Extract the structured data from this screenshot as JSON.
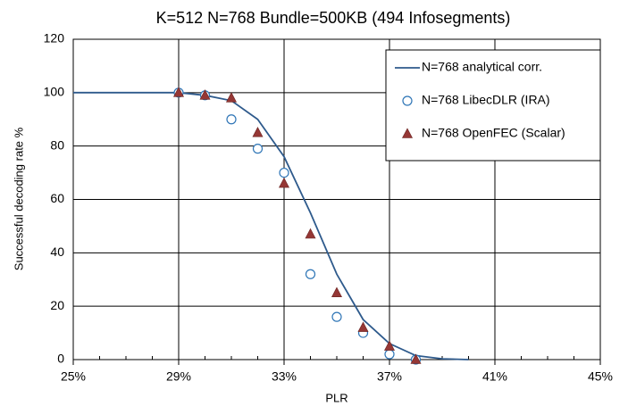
{
  "chart_data": {
    "type": "line",
    "title": "K=512 N=768 Bundle=500KB (494 Infosegments)",
    "xlabel": "PLR",
    "ylabel": "Successful decoding rate %",
    "xlim": [
      25,
      45
    ],
    "xticks": [
      {
        "value": 25,
        "label": "25%"
      },
      {
        "value": 29,
        "label": "29%"
      },
      {
        "value": 33,
        "label": "33%"
      },
      {
        "value": 37,
        "label": "37%"
      },
      {
        "value": 41,
        "label": "41%"
      },
      {
        "value": 45,
        "label": "45%"
      }
    ],
    "xminorticks": [
      26,
      27,
      28,
      30,
      31,
      32,
      34,
      35,
      36,
      38,
      39,
      40,
      42,
      43,
      44
    ],
    "ylim": [
      0,
      120
    ],
    "yticks": [
      0,
      20,
      40,
      60,
      80,
      100,
      120
    ],
    "grid": true,
    "legend": "upper right",
    "series": [
      {
        "name": "N=768 analytical corr.",
        "marker": "line",
        "color": "#2e5a8c",
        "x": [
          25,
          26,
          27,
          28,
          29,
          30,
          31,
          32,
          33,
          34,
          35,
          36,
          37,
          38,
          39,
          40
        ],
        "values": [
          100,
          100,
          100,
          100,
          100,
          99,
          97,
          90,
          76,
          55,
          32,
          15,
          6,
          1.5,
          0.3,
          0
        ]
      },
      {
        "name": "N=768 LibecDLR (IRA)",
        "marker": "circle",
        "color": "#2e75b6",
        "x": [
          29,
          30,
          31,
          32,
          33,
          34,
          35,
          36,
          37,
          38
        ],
        "values": [
          100,
          99,
          90,
          79,
          70,
          32,
          16,
          10,
          2,
          0
        ]
      },
      {
        "name": "N=768 OpenFEC (Scalar)",
        "marker": "triangle",
        "color": "#953735",
        "x": [
          29,
          30,
          31,
          32,
          33,
          34,
          35,
          36,
          37,
          38
        ],
        "values": [
          100,
          99,
          98,
          85,
          66,
          47,
          25,
          12,
          5,
          0
        ]
      }
    ]
  }
}
